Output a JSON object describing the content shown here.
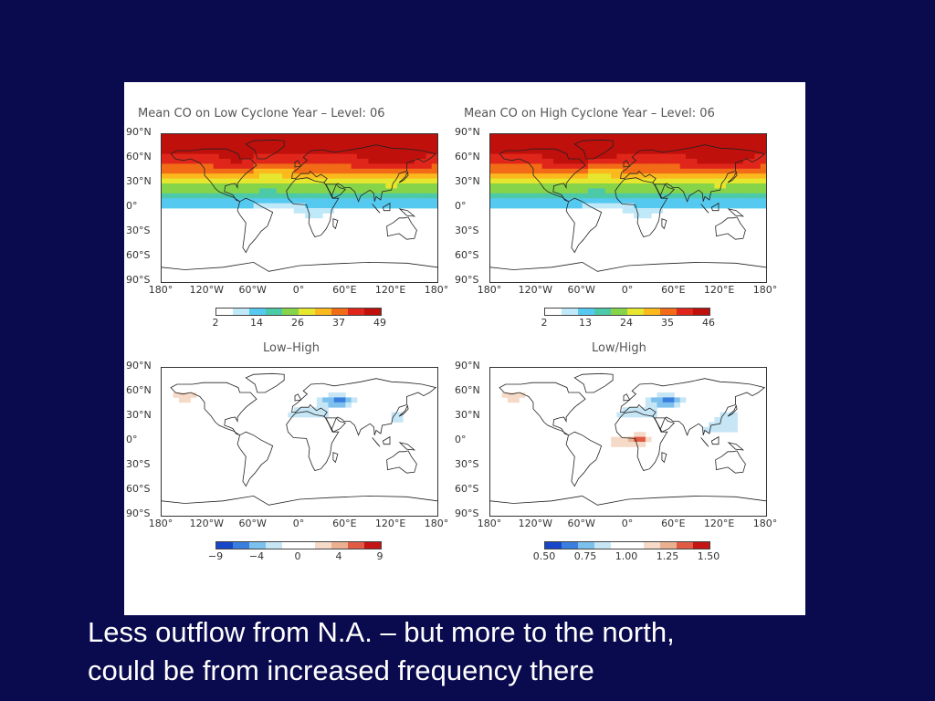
{
  "panels": [
    {
      "title": "Mean CO on Low Cyclone Year – Level: 06",
      "scale": "seq",
      "colorbar_ticks": [
        "2",
        "14",
        "26",
        "37",
        "49"
      ],
      "lat_labels": [
        "90°N",
        "60°N",
        "30°N",
        "0°",
        "30°S",
        "60°S",
        "90°S"
      ],
      "lon_labels": [
        "180°",
        "120°W",
        "60°W",
        "0°",
        "60°E",
        "120°E",
        "180°"
      ]
    },
    {
      "title": "Mean CO on High Cyclone Year – Level: 06",
      "scale": "seq",
      "colorbar_ticks": [
        "2",
        "13",
        "24",
        "35",
        "46"
      ],
      "lat_labels": [
        "90°N",
        "60°N",
        "30°N",
        "0°",
        "30°S",
        "60°S",
        "90°S"
      ],
      "lon_labels": [
        "180°",
        "120°W",
        "60°W",
        "0°",
        "60°E",
        "120°E",
        "180°"
      ]
    },
    {
      "title": "Low–High",
      "scale": "div",
      "colorbar_ticks": [
        "−9",
        "−4",
        "0",
        "4",
        "9"
      ],
      "lat_labels": [
        "90°N",
        "60°N",
        "30°N",
        "0°",
        "30°S",
        "60°S",
        "90°S"
      ],
      "lon_labels": [
        "180°",
        "120°W",
        "60°W",
        "0°",
        "60°E",
        "120°E",
        "180°"
      ]
    },
    {
      "title": "Low/High",
      "scale": "div",
      "colorbar_ticks": [
        "0.50",
        "0.75",
        "1.00",
        "1.25",
        "1.50"
      ],
      "lat_labels": [
        "90°N",
        "60°N",
        "30°N",
        "0°",
        "30°S",
        "60°S",
        "90°S"
      ],
      "lon_labels": [
        "180°",
        "120°W",
        "60°W",
        "0°",
        "60°E",
        "120°E",
        "180°"
      ]
    }
  ],
  "colors": {
    "slide_background": "#0a0a4e",
    "sequential": [
      "#ffffff",
      "#bfe8f8",
      "#55c9ef",
      "#4cc9a8",
      "#86d44a",
      "#e6e62e",
      "#fbb91e",
      "#f26b16",
      "#e0261a",
      "#c0100c"
    ],
    "diverging": [
      "#1846c8",
      "#3a7fe0",
      "#7cc0ee",
      "#c6e6f6",
      "#ffffff",
      "#ffffff",
      "#f6dac8",
      "#eab090",
      "#e05a44",
      "#c41414"
    ]
  },
  "caption": {
    "line1": "Less outflow from N.A. – but more to the north,",
    "line2": "could be from increased frequency there"
  }
}
